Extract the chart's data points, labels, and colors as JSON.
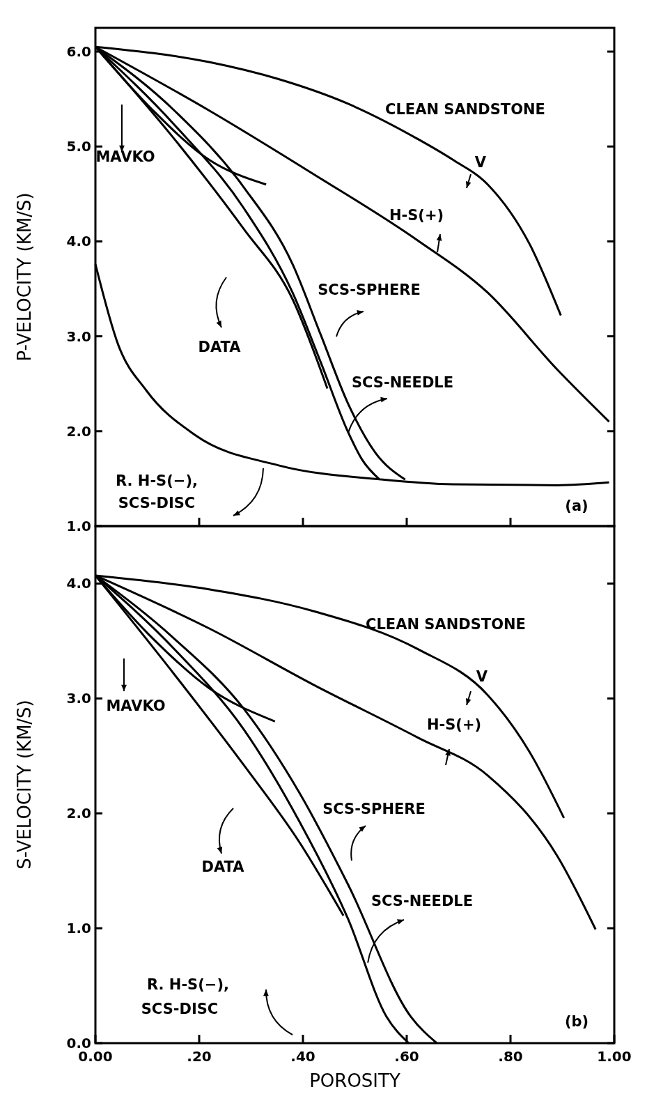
{
  "chart_data": [
    {
      "type": "line",
      "ylabel": "P-VELOCITY (KM/S)",
      "xlim": [
        0,
        1
      ],
      "ylim": [
        1,
        6.25
      ],
      "tick_labels": "y",
      "xticks": [
        {
          "value": 0.2,
          "label": null
        },
        {
          "value": 0.4,
          "label": null
        },
        {
          "value": 0.6,
          "label": null
        },
        {
          "value": 0.8,
          "label": null
        }
      ],
      "yticks": [
        {
          "value": 1,
          "label": "1.0"
        },
        {
          "value": 2,
          "label": "2.0"
        },
        {
          "value": 3,
          "label": "3.0"
        },
        {
          "value": 4,
          "label": "4.0"
        },
        {
          "value": 5,
          "label": "5.0"
        },
        {
          "value": 6,
          "label": "6.0"
        }
      ],
      "series": [
        {
          "color": "#000000",
          "x": [
            0,
            0.219,
            0.353,
            0.487,
            0.621,
            0.689,
            0.756,
            0.836,
            0.897
          ],
          "values": [
            6.05,
            5.89,
            5.71,
            5.45,
            5.08,
            4.86,
            4.6,
            3.98,
            3.22
          ]
        },
        {
          "color": "#000000",
          "x": [
            0,
            0.219,
            0.42,
            0.621,
            0.756,
            0.89,
            0.99
          ],
          "values": [
            6.05,
            5.38,
            4.71,
            4.01,
            3.46,
            2.65,
            2.1
          ]
        },
        {
          "color": "#000000",
          "x": [
            0,
            0.111,
            0.219,
            0.329
          ],
          "values": [
            6.05,
            5.38,
            4.86,
            4.6
          ]
        },
        {
          "color": "#000000",
          "x": [
            0,
            0.152,
            0.286,
            0.38,
            0.447
          ],
          "values": [
            6.05,
            5.08,
            4.13,
            3.39,
            2.45
          ]
        },
        {
          "color": "#000000",
          "x": [
            0,
            0.152,
            0.286,
            0.38,
            0.434,
            0.487,
            0.54,
            0.597
          ],
          "values": [
            6.05,
            5.38,
            4.57,
            3.76,
            3.02,
            2.29,
            1.77,
            1.49
          ]
        },
        {
          "color": "#000000",
          "x": [
            0,
            0.152,
            0.286,
            0.38,
            0.434,
            0.487,
            0.514,
            0.548
          ],
          "values": [
            6.05,
            5.23,
            4.35,
            3.46,
            2.73,
            1.99,
            1.7,
            1.49
          ]
        },
        {
          "color": "#000000",
          "x": [
            0,
            0.044,
            0.098,
            0.192,
            0.353,
            0.554,
            0.689,
            0.89,
            0.99
          ],
          "values": [
            3.76,
            2.91,
            2.43,
            1.96,
            1.64,
            1.49,
            1.44,
            1.43,
            1.46
          ]
        }
      ],
      "annotations": [
        "CLEAN SANDSTONE",
        "V",
        "H-S(+)",
        "MAVKO",
        "SCS-SPHERE",
        "DATA",
        {
          "text": "SCS-NEEDLE",
          "x": 0.487,
          "y": 1.98
        },
        "R. H-S(−),",
        "SCS-DISC",
        "(a)"
      ]
    },
    {
      "type": "line",
      "ylabel": "S-VELOCITY (KM/S)",
      "xlabel": "POROSITY",
      "xlim": [
        0,
        1
      ],
      "ylim": [
        0,
        4.5
      ],
      "xticks": [
        {
          "value": 0,
          "label": "0.00"
        },
        {
          "value": 0.2,
          "label": ".20"
        },
        {
          "value": 0.4,
          "label": ".40"
        },
        {
          "value": 0.6,
          "label": ".60"
        },
        {
          "value": 0.8,
          "label": ".80"
        },
        {
          "value": 1,
          "label": "1.00"
        }
      ],
      "yticks": [
        {
          "value": 0,
          "label": "0.0"
        },
        {
          "value": 1,
          "label": "1.0"
        },
        {
          "value": 2,
          "label": "2.0"
        },
        {
          "value": 3,
          "label": "3.0"
        },
        {
          "value": 4,
          "label": "4.0"
        }
      ],
      "series": [
        {
          "color": "#000000",
          "x": [
            0,
            0.219,
            0.42,
            0.621,
            0.756,
            0.836,
            0.903
          ],
          "values": [
            4.07,
            3.95,
            3.76,
            3.43,
            3.03,
            2.54,
            1.96
          ]
        },
        {
          "color": "#000000",
          "x": [
            0,
            0.219,
            0.42,
            0.621,
            0.756,
            0.89,
            0.964
          ],
          "values": [
            4.07,
            3.61,
            3.12,
            2.66,
            2.33,
            1.63,
            0.99
          ]
        },
        {
          "color": "#000000",
          "x": [
            0,
            0.111,
            0.219,
            0.346
          ],
          "values": [
            4.07,
            3.52,
            3.09,
            2.8
          ]
        },
        {
          "color": "#000000",
          "x": [
            0,
            0.152,
            0.286,
            0.393,
            0.478
          ],
          "values": [
            4.07,
            3.21,
            2.42,
            1.75,
            1.11
          ]
        },
        {
          "color": "#000000",
          "x": [
            0,
            0.152,
            0.286,
            0.393,
            0.487,
            0.608,
            0.658
          ],
          "values": [
            4.07,
            3.52,
            2.91,
            2.18,
            1.38,
            0.23,
            0
          ]
        },
        {
          "color": "#000000",
          "x": [
            0,
            0.152,
            0.286,
            0.393,
            0.487,
            0.561,
            0.604
          ],
          "values": [
            4.07,
            3.43,
            2.73,
            1.93,
            1.08,
            0.23,
            0
          ]
        }
      ],
      "annotations": [
        "CLEAN SANDSTONE",
        "V",
        "H-S(+)",
        "MAVKO",
        "SCS-SPHERE",
        "DATA",
        {
          "text": "SCS-NEEDLE",
          "x": 0.525,
          "y": 0.7
        },
        "R. H-S(−),",
        "SCS-DISC",
        "(b)"
      ]
    }
  ]
}
